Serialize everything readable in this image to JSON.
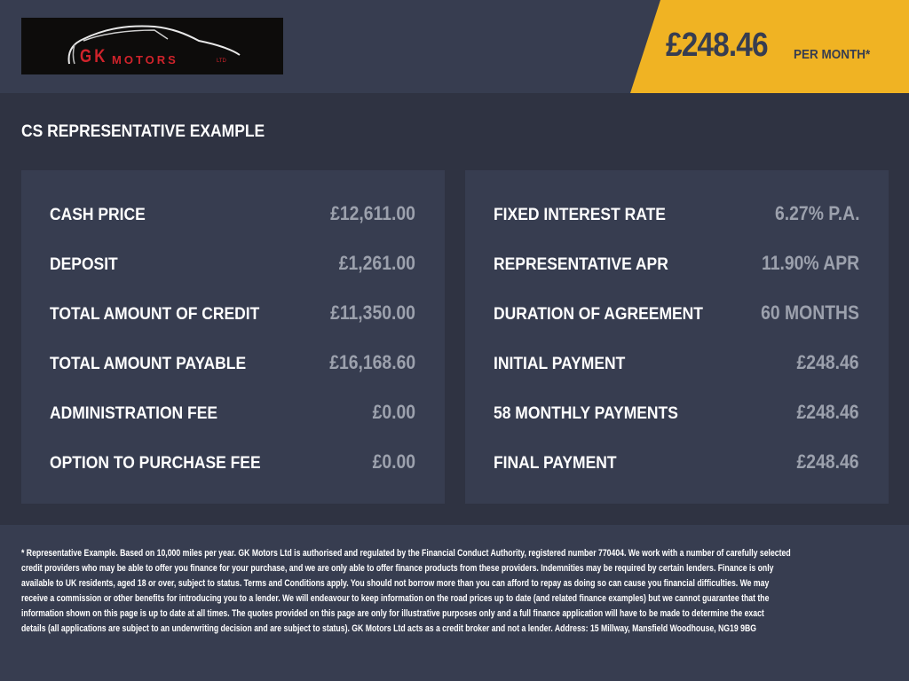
{
  "header": {
    "logo": {
      "text_main": "GK",
      "text_sub": "MOTORS",
      "text_ltd": "LTD"
    },
    "price": "£248.46",
    "per_month": "PER MONTH*",
    "accent_color": "#f0b323"
  },
  "section_title": "CS REPRESENTATIVE EXAMPLE",
  "left_panel": [
    {
      "label": "CASH PRICE",
      "value": "£12,611.00"
    },
    {
      "label": "DEPOSIT",
      "value": "£1,261.00"
    },
    {
      "label": "TOTAL AMOUNT OF CREDIT",
      "value": "£11,350.00"
    },
    {
      "label": "TOTAL AMOUNT PAYABLE",
      "value": "£16,168.60"
    },
    {
      "label": "ADMINISTRATION FEE",
      "value": "£0.00"
    },
    {
      "label": "OPTION TO PURCHASE FEE",
      "value": "£0.00"
    }
  ],
  "right_panel": [
    {
      "label": "FIXED INTEREST RATE",
      "value": "6.27% P.A."
    },
    {
      "label": "REPRESENTATIVE APR",
      "value": "11.90% APR"
    },
    {
      "label": "DURATION OF AGREEMENT",
      "value": "60 MONTHS"
    },
    {
      "label": "INITIAL PAYMENT",
      "value": "£248.46"
    },
    {
      "label": "58 MONTHLY PAYMENTS",
      "value": "£248.46"
    },
    {
      "label": "FINAL PAYMENT",
      "value": "£248.46"
    }
  ],
  "footer": {
    "lines": [
      "* Representative Example. Based on 10,000 miles per year. GK Motors Ltd is authorised and regulated by the Financial Conduct Authority, registered number 770404. We work with a number of carefully selected",
      "credit providers who may be able to offer you finance for your purchase, and we are only able to offer finance products from these providers. Indemnities may be required by certain lenders. Finance is only",
      "available to UK residents, aged 18 or over, subject to status. Terms and Conditions apply. You should not borrow more than you can afford to repay as doing so can cause you financial difficulties. We may",
      "receive a commission or other benefits for introducing you to a lender. We will endeavour to keep information on the road prices up to date (and related finance examples) but we cannot guarantee that the",
      "information shown on this page is up to date at all times. The quotes provided on this page are only for illustrative purposes only and a full finance application will have to be made to determine the exact",
      "details (all applications are subject to an underwriting decision and are subject to status). GK Motors Ltd acts as a credit broker and not a lender. Address: 15 Millway, Mansfield Woodhouse, NG19 9BG"
    ]
  }
}
